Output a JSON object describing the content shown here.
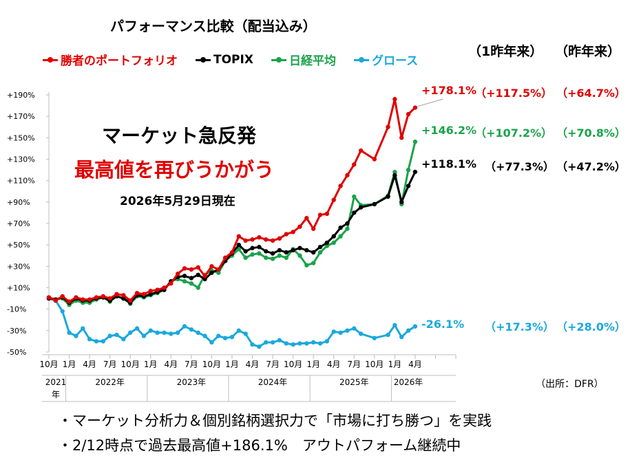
{
  "chart_data": {
    "type": "line",
    "title": "パフォーマンス比較（配当込み）",
    "y_unit": "%",
    "ylim": [
      -50,
      190
    ],
    "y_ticks": [
      -50,
      -30,
      -10,
      10,
      30,
      50,
      70,
      90,
      110,
      130,
      150,
      170,
      190
    ],
    "y_tick_labels": [
      "-50%",
      "-30%",
      "-10%",
      "+10%",
      "+30%",
      "+50%",
      "+70%",
      "+90%",
      "+110%",
      "+130%",
      "+150%",
      "+170%",
      "+190%"
    ],
    "x_start": "2021-10",
    "x_tick_labels": [
      {
        "label": "10月",
        "month_index": 0
      },
      {
        "label": "1月",
        "month_index": 3
      },
      {
        "label": "4月",
        "month_index": 6
      },
      {
        "label": "7月",
        "month_index": 9
      },
      {
        "label": "10月",
        "month_index": 12
      },
      {
        "label": "1月",
        "month_index": 15
      },
      {
        "label": "4月",
        "month_index": 18
      },
      {
        "label": "7月",
        "month_index": 21
      },
      {
        "label": "10月",
        "month_index": 24
      },
      {
        "label": "1月",
        "month_index": 27
      },
      {
        "label": "4月",
        "month_index": 30
      },
      {
        "label": "7月",
        "month_index": 33
      },
      {
        "label": "10月",
        "month_index": 36
      },
      {
        "label": "1月",
        "month_index": 39
      },
      {
        "label": "4月",
        "month_index": 42
      },
      {
        "label": "7月",
        "month_index": 45
      },
      {
        "label": "10月",
        "month_index": 48
      },
      {
        "label": "1月",
        "month_index": 51
      },
      {
        "label": "4月",
        "month_index": 54
      }
    ],
    "year_labels": [
      {
        "label": "2021\n年",
        "from": 0,
        "to": 3
      },
      {
        "label": "2022年",
        "from": 3,
        "to": 15
      },
      {
        "label": "2023年",
        "from": 15,
        "to": 27
      },
      {
        "label": "2024年",
        "from": 27,
        "to": 39
      },
      {
        "label": "2025年",
        "from": 39,
        "to": 51
      },
      {
        "label": "2026年",
        "from": 51,
        "to": 55
      }
    ],
    "series": [
      {
        "name": "勝者のポートフォリオ",
        "color": "#e00000",
        "values": [
          1,
          -2,
          2,
          -3,
          1,
          -1,
          -1,
          1,
          2,
          0,
          4,
          3,
          -2,
          5,
          4,
          7,
          8,
          10,
          14,
          23,
          28,
          27,
          29,
          21,
          30,
          27,
          38,
          43,
          58,
          54,
          55,
          57,
          55,
          54,
          56,
          60,
          62,
          67,
          75,
          65,
          78,
          79,
          92,
          105,
          115,
          125,
          138,
          130,
          160,
          186,
          150,
          172,
          178.1
        ],
        "x": [
          0,
          1,
          2,
          3,
          4,
          5,
          6,
          7,
          8,
          9,
          10,
          11,
          12,
          13,
          14,
          15,
          16,
          17,
          18,
          19,
          20,
          21,
          22,
          23,
          24,
          25,
          26,
          27,
          28,
          29,
          30,
          31,
          32,
          33,
          34,
          35,
          36,
          37,
          38,
          39,
          40,
          41,
          42,
          43,
          44,
          45,
          46,
          48,
          50,
          51,
          52,
          53,
          54
        ]
      },
      {
        "name": "TOPIX",
        "color": "#000000",
        "values": [
          0,
          -1,
          1,
          -4,
          0,
          -2,
          -2,
          0,
          1,
          -2,
          2,
          0,
          -4,
          3,
          2,
          4,
          6,
          8,
          16,
          20,
          21,
          19,
          22,
          18,
          24,
          27,
          35,
          42,
          50,
          44,
          47,
          48,
          44,
          42,
          45,
          43,
          45,
          47,
          45,
          43,
          48,
          52,
          58,
          66,
          70,
          80,
          85,
          88,
          95,
          115,
          90,
          105,
          118.1
        ],
        "x": [
          0,
          1,
          2,
          3,
          4,
          5,
          6,
          7,
          8,
          9,
          10,
          11,
          12,
          13,
          14,
          15,
          16,
          17,
          18,
          19,
          20,
          21,
          22,
          23,
          24,
          25,
          26,
          27,
          28,
          29,
          30,
          31,
          32,
          33,
          34,
          35,
          36,
          37,
          38,
          39,
          40,
          41,
          42,
          43,
          44,
          45,
          46,
          48,
          50,
          51,
          52,
          53,
          54
        ]
      },
      {
        "name": "日経平均",
        "color": "#1aa34a",
        "values": [
          1,
          -1,
          0,
          -6,
          -2,
          -4,
          -4,
          -1,
          1,
          -3,
          2,
          0,
          -5,
          2,
          1,
          3,
          5,
          8,
          16,
          18,
          16,
          14,
          10,
          22,
          26,
          24,
          35,
          40,
          46,
          38,
          41,
          42,
          38,
          37,
          40,
          38,
          46,
          40,
          31,
          33,
          43,
          49,
          52,
          58,
          65,
          95,
          87,
          88,
          96,
          118,
          88,
          120,
          146.2
        ],
        "x": [
          0,
          1,
          2,
          3,
          4,
          5,
          6,
          7,
          8,
          9,
          10,
          11,
          12,
          13,
          14,
          15,
          16,
          17,
          18,
          19,
          20,
          21,
          22,
          23,
          24,
          25,
          26,
          27,
          28,
          29,
          30,
          31,
          32,
          33,
          34,
          35,
          36,
          37,
          38,
          39,
          40,
          41,
          42,
          43,
          44,
          45,
          46,
          48,
          50,
          51,
          52,
          53,
          54
        ]
      },
      {
        "name": "グロース",
        "color": "#1ba8dc",
        "values": [
          0,
          -2,
          -12,
          -32,
          -35,
          -28,
          -38,
          -40,
          -40,
          -35,
          -34,
          -38,
          -32,
          -28,
          -35,
          -30,
          -32,
          -32,
          -33,
          -32,
          -26,
          -29,
          -32,
          -35,
          -41,
          -35,
          -37,
          -36,
          -30,
          -33,
          -43,
          -45,
          -41,
          -41,
          -39,
          -42,
          -43,
          -42,
          -42,
          -41,
          -42,
          -40,
          -31,
          -32,
          -30,
          -28,
          -33,
          -37,
          -34,
          -25,
          -36,
          -30,
          -26.1
        ],
        "x": [
          0,
          1,
          2,
          3,
          4,
          5,
          6,
          7,
          8,
          9,
          10,
          11,
          12,
          13,
          14,
          15,
          16,
          17,
          18,
          19,
          20,
          21,
          22,
          23,
          24,
          25,
          26,
          27,
          28,
          29,
          30,
          31,
          32,
          33,
          34,
          35,
          36,
          37,
          38,
          39,
          40,
          41,
          42,
          43,
          44,
          45,
          46,
          48,
          50,
          51,
          52,
          53,
          54
        ]
      }
    ],
    "legend_position": "top-left",
    "grid": false
  },
  "legend": {
    "items": [
      {
        "label": "勝者のポートフォリオ",
        "color": "#e00000"
      },
      {
        "label": "TOPIX",
        "color": "#000000"
      },
      {
        "label": "日経平均",
        "color": "#1aa34a"
      },
      {
        "label": "グロース",
        "color": "#1ba8dc"
      }
    ]
  },
  "columns": {
    "one_year_label": "（1昨年来）",
    "last_year_label": "（昨年来）"
  },
  "returns": {
    "portfolio": {
      "total": "+178.1%",
      "one_year": "（+117.5%）",
      "last_year": "（+64.7%）",
      "color": "#e00000"
    },
    "nikkei": {
      "total": "+146.2%",
      "one_year": "（+107.2%）",
      "last_year": "（+70.8%）",
      "color": "#1aa34a"
    },
    "topix": {
      "total": "+118.1%",
      "one_year": "（+77.3%）",
      "last_year": "（+47.2%）",
      "color": "#000000"
    },
    "growth": {
      "total": "-26.1%",
      "one_year": "（+17.3%）",
      "last_year": "（+28.0%）",
      "color": "#1ba8dc"
    }
  },
  "headline": {
    "line1": "マーケット急反発",
    "line2": "最高値を再びうかがう",
    "as_of": "2026年5月29日現在"
  },
  "source": "（出所：DFR）",
  "bullets": [
    "・マーケット分析力＆個別銘柄選択力で「市場に打ち勝つ」を実践",
    "・2/12時点で過去最高値+186.1%　アウトパフォーム継続中"
  ]
}
